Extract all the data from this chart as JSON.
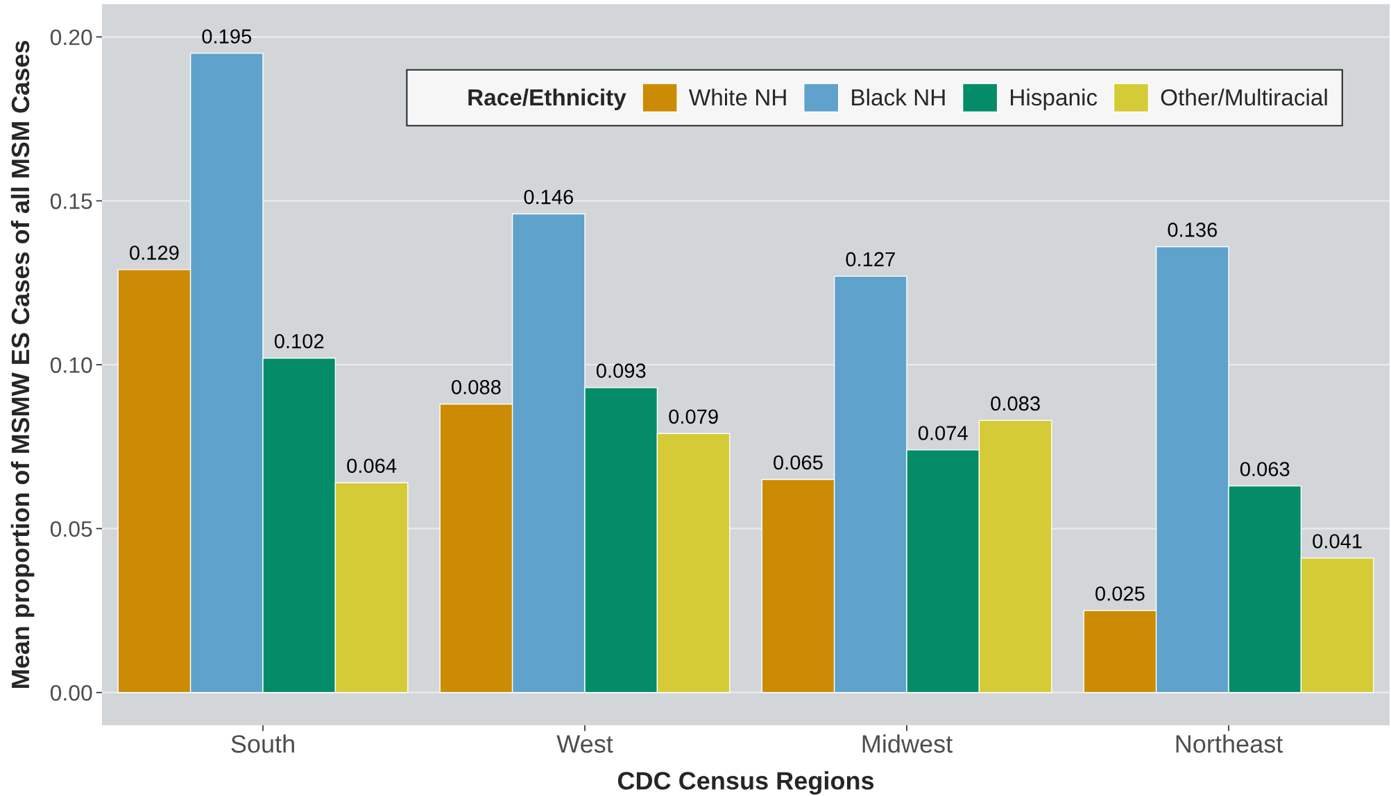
{
  "chart_data": {
    "type": "bar",
    "xlabel": "CDC Census Regions",
    "ylabel": "Mean proportion of MSMW ES Cases of all MSM Cases",
    "legend_title": "Race/Ethnicity",
    "categories": [
      "South",
      "West",
      "Midwest",
      "Northeast"
    ],
    "series": [
      {
        "name": "White NH",
        "color": "#cc8b04",
        "values": [
          0.129,
          0.088,
          0.065,
          0.025
        ]
      },
      {
        "name": "Black NH",
        "color": "#5fa2cb",
        "values": [
          0.195,
          0.146,
          0.127,
          0.136
        ]
      },
      {
        "name": "Hispanic",
        "color": "#048c68",
        "values": [
          0.102,
          0.093,
          0.074,
          0.063
        ]
      },
      {
        "name": "Other/Multiracial",
        "color": "#d5cb36",
        "values": [
          0.064,
          0.079,
          0.083,
          0.041
        ]
      }
    ],
    "ylim": [
      -0.01,
      0.21
    ],
    "yticks": [
      {
        "value": 0,
        "label": "0.00"
      },
      0.05,
      {
        "value": 0.1,
        "label": "0.10"
      },
      0.15,
      {
        "value": 0.2,
        "label": "0.20"
      }
    ],
    "grid": "y",
    "legend": "top",
    "data_labels": true
  }
}
